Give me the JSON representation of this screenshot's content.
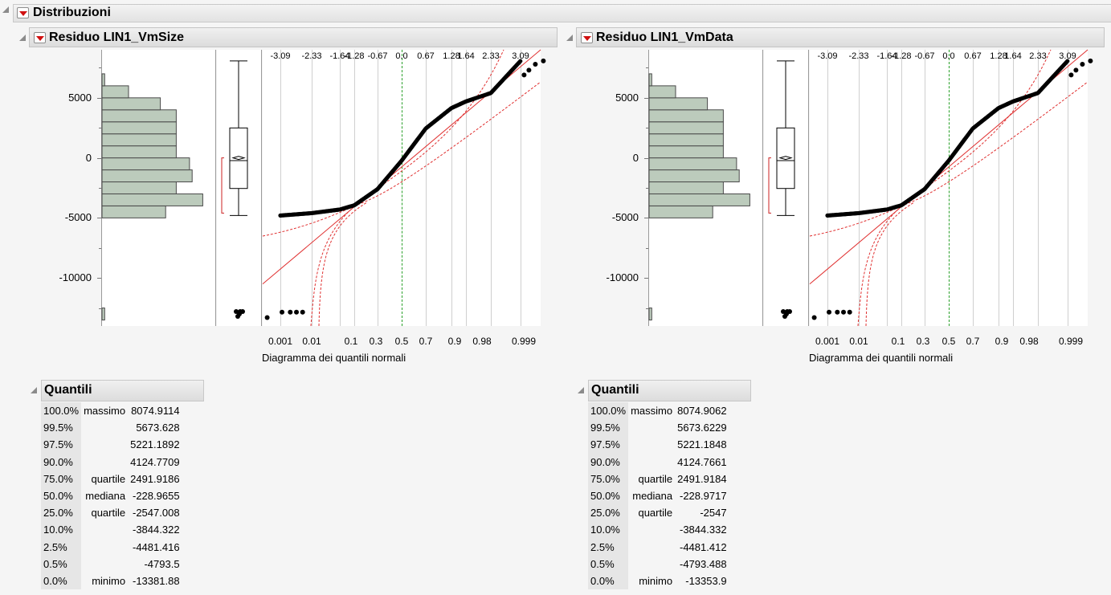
{
  "window": {
    "title": "Distribuzioni"
  },
  "axes": {
    "y_ticks": [
      "5000",
      "0",
      "-5000",
      "-10000"
    ],
    "normal_quantile_top": [
      "-3.09",
      "-2.33",
      "-1.64",
      "-1.28",
      "-0.67",
      "0.0",
      "0.67",
      "1.28",
      "1.64",
      "2.33",
      "3.09"
    ],
    "prob_ticks": [
      "0.001",
      "0.01",
      "0.1",
      "0.3",
      "0.5",
      "0.7",
      "0.9",
      "0.98",
      "0.999"
    ],
    "x_title": "Diagramma dei quantili normali"
  },
  "panels": [
    {
      "title": "Residuo LIN1_VmSize",
      "quantiles_title": "Quantili",
      "quantiles": [
        {
          "pct": "100.0%",
          "label": "massimo",
          "value": "8074.9114"
        },
        {
          "pct": "99.5%",
          "label": "",
          "value": "5673.628"
        },
        {
          "pct": "97.5%",
          "label": "",
          "value": "5221.1892"
        },
        {
          "pct": "90.0%",
          "label": "",
          "value": "4124.7709"
        },
        {
          "pct": "75.0%",
          "label": "quartile",
          "value": "2491.9186"
        },
        {
          "pct": "50.0%",
          "label": "mediana",
          "value": "-228.9655"
        },
        {
          "pct": "25.0%",
          "label": "quartile",
          "value": "-2547.008"
        },
        {
          "pct": "10.0%",
          "label": "",
          "value": "-3844.322"
        },
        {
          "pct": "2.5%",
          "label": "",
          "value": "-4481.416"
        },
        {
          "pct": "0.5%",
          "label": "",
          "value": "-4793.5"
        },
        {
          "pct": "0.0%",
          "label": "minimo",
          "value": "-13381.88"
        }
      ]
    },
    {
      "title": "Residuo LIN1_VmData",
      "quantiles_title": "Quantili",
      "quantiles": [
        {
          "pct": "100.0%",
          "label": "massimo",
          "value": "8074.9062"
        },
        {
          "pct": "99.5%",
          "label": "",
          "value": "5673.6229"
        },
        {
          "pct": "97.5%",
          "label": "",
          "value": "5221.1848"
        },
        {
          "pct": "90.0%",
          "label": "",
          "value": "4124.7661"
        },
        {
          "pct": "75.0%",
          "label": "quartile",
          "value": "2491.9184"
        },
        {
          "pct": "50.0%",
          "label": "mediana",
          "value": "-228.9717"
        },
        {
          "pct": "25.0%",
          "label": "quartile",
          "value": "-2547"
        },
        {
          "pct": "10.0%",
          "label": "",
          "value": "-3844.332"
        },
        {
          "pct": "2.5%",
          "label": "",
          "value": "-4481.412"
        },
        {
          "pct": "0.5%",
          "label": "",
          "value": "-4793.488"
        },
        {
          "pct": "0.0%",
          "label": "minimo",
          "value": "-13353.9"
        }
      ]
    }
  ],
  "chart_data": [
    {
      "type": "bar",
      "orientation": "horizontal",
      "categories": [
        "-13000",
        "-4500",
        "-3500",
        "-2500",
        "-1500",
        "-500",
        "500",
        "1500",
        "2500",
        "3500",
        "4500",
        "5500",
        "6500"
      ],
      "values": [
        1,
        24,
        38,
        28,
        34,
        33,
        28,
        28,
        28,
        28,
        22,
        10,
        1
      ],
      "ylim": [
        -14000,
        9000
      ],
      "color": "#bccbbc"
    },
    {
      "type": "scatter",
      "x": [
        -3.09,
        -2.33,
        -1.64,
        -1.28,
        -0.67,
        0.0,
        0.67,
        1.28,
        1.64,
        2.33,
        3.09
      ],
      "y": [
        -4800,
        -4600,
        -4300,
        -3950,
        -2600,
        -230,
        2450,
        4150,
        4700,
        5400,
        8075
      ],
      "xlabel": "Diagramma dei quantili normali",
      "ylim": [
        -14000,
        9000
      ]
    }
  ]
}
